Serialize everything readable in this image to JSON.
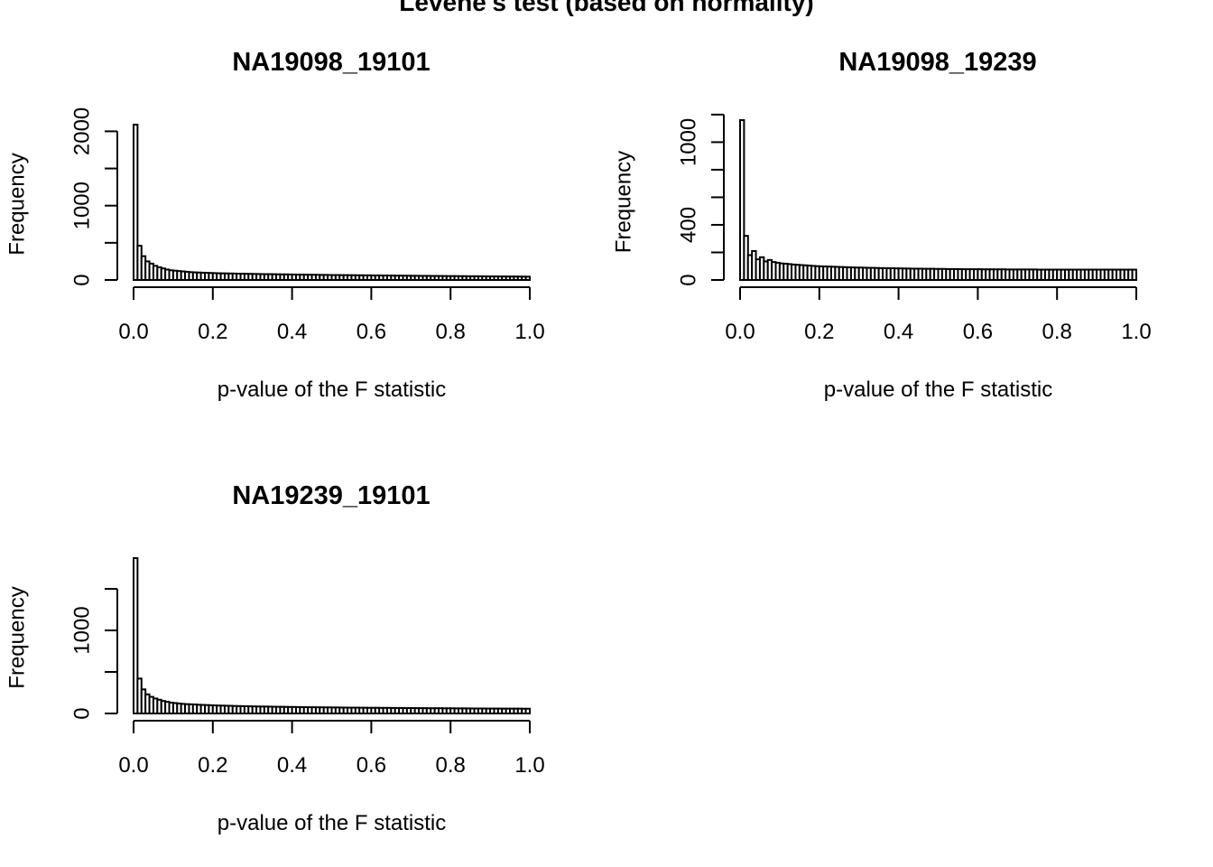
{
  "page": {
    "main_title": "Levene's test (based on normality)"
  },
  "chart_data": [
    {
      "type": "bar",
      "title": "NA19098_19101",
      "xlabel": "p-value of the F statistic",
      "ylabel": "Frequency",
      "xlim": [
        0,
        1
      ],
      "ylim": [
        0,
        2150
      ],
      "xticks": [
        "0.0",
        "0.2",
        "0.4",
        "0.6",
        "0.8",
        "1.0"
      ],
      "yticks": [
        0,
        1000,
        2000
      ],
      "yticks_minor": [
        500,
        1500
      ],
      "bin_width": 0.01,
      "values": [
        2090,
        460,
        320,
        250,
        220,
        190,
        170,
        155,
        140,
        130,
        125,
        120,
        115,
        110,
        105,
        102,
        100,
        98,
        96,
        94,
        92,
        90,
        89,
        88,
        87,
        86,
        85,
        84,
        83,
        82,
        81,
        80,
        79,
        78,
        78,
        77,
        76,
        75,
        75,
        74,
        73,
        72,
        72,
        71,
        70,
        70,
        69,
        68,
        68,
        67,
        66,
        66,
        65,
        65,
        64,
        64,
        63,
        63,
        62,
        62,
        61,
        61,
        60,
        60,
        59,
        59,
        58,
        58,
        57,
        57,
        56,
        56,
        55,
        55,
        55,
        54,
        54,
        53,
        53,
        52,
        52,
        52,
        51,
        51,
        50,
        50,
        50,
        49,
        49,
        48,
        48,
        48,
        47,
        47,
        46,
        46,
        46,
        45,
        45,
        44
      ]
    },
    {
      "type": "bar",
      "title": "NA19098_19239",
      "xlabel": "p-value of the F statistic",
      "ylabel": "Frequency",
      "xlim": [
        0,
        1
      ],
      "ylim": [
        0,
        1200
      ],
      "xticks": [
        "0.0",
        "0.2",
        "0.4",
        "0.6",
        "0.8",
        "1.0"
      ],
      "yticks": [
        0,
        400,
        1000
      ],
      "yticks_minor": [
        200,
        600,
        800,
        1200
      ],
      "bin_width": 0.01,
      "values": [
        1160,
        320,
        180,
        210,
        150,
        165,
        135,
        145,
        130,
        125,
        120,
        118,
        115,
        112,
        110,
        108,
        106,
        104,
        102,
        100,
        99,
        98,
        97,
        96,
        95,
        94,
        93,
        92,
        91,
        90,
        90,
        89,
        88,
        88,
        87,
        86,
        86,
        85,
        85,
        84,
        84,
        83,
        83,
        82,
        82,
        82,
        81,
        81,
        81,
        80,
        80,
        80,
        79,
        79,
        79,
        79,
        78,
        78,
        78,
        78,
        78,
        77,
        77,
        77,
        77,
        77,
        77,
        76,
        76,
        76,
        76,
        76,
        76,
        76,
        76,
        75,
        75,
        75,
        75,
        75,
        75,
        75,
        75,
        75,
        75,
        75,
        75,
        75,
        75,
        75,
        75,
        75,
        75,
        75,
        75,
        75,
        75,
        75,
        75,
        75
      ]
    },
    {
      "type": "bar",
      "title": "NA19239_19101",
      "xlabel": "p-value of the F statistic",
      "ylabel": "Frequency",
      "xlim": [
        0,
        1
      ],
      "ylim": [
        0,
        1900
      ],
      "xticks": [
        "0.0",
        "0.2",
        "0.4",
        "0.6",
        "0.8",
        "1.0"
      ],
      "yticks": [
        0,
        1000
      ],
      "yticks_minor": [
        500,
        1500
      ],
      "bin_width": 0.01,
      "values": [
        1870,
        420,
        290,
        230,
        200,
        180,
        165,
        150,
        140,
        130,
        125,
        120,
        115,
        112,
        110,
        108,
        105,
        103,
        101,
        99,
        97,
        95,
        94,
        93,
        92,
        90,
        89,
        88,
        87,
        86,
        85,
        84,
        83,
        83,
        82,
        81,
        80,
        80,
        79,
        78,
        78,
        77,
        76,
        76,
        75,
        75,
        74,
        74,
        73,
        73,
        72,
        72,
        71,
        71,
        70,
        70,
        70,
        69,
        69,
        68,
        68,
        68,
        67,
        67,
        67,
        66,
        66,
        66,
        65,
        65,
        65,
        64,
        64,
        64,
        63,
        63,
        63,
        63,
        62,
        62,
        62,
        61,
        61,
        61,
        61,
        60,
        60,
        60,
        60,
        59,
        59,
        59,
        59,
        58,
        58,
        58,
        58,
        58,
        57,
        57
      ]
    }
  ]
}
